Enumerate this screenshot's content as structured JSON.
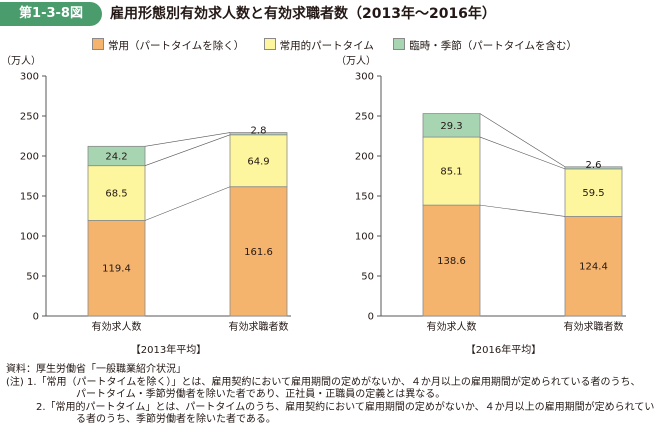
{
  "figure_label": "第1-3-8図",
  "title": "雇用形態別有効求人数と有効求職者数（2013年～2016年）",
  "legend": [
    {
      "label": "常用（パートタイムを除く）",
      "color": "#f5b46e"
    },
    {
      "label": "常用的パートタイム",
      "color": "#fdf69e"
    },
    {
      "label": "臨時・季節（パートタイムを含む）",
      "color": "#a7d5b2"
    }
  ],
  "chart_data": [
    {
      "type": "bar",
      "stacked": true,
      "ylabel": "（万人）",
      "ylim": [
        0,
        300
      ],
      "yticks": [
        0,
        50,
        100,
        150,
        200,
        250,
        300
      ],
      "categories": [
        "有効求人数",
        "有効求職者数"
      ],
      "xlabel": "【2013年平均】",
      "series": [
        {
          "name": "常用（パートタイムを除く）",
          "color": "#f5b46e",
          "values": [
            119.4,
            161.6
          ]
        },
        {
          "name": "常用的パートタイム",
          "color": "#fdf69e",
          "values": [
            68.5,
            64.9
          ]
        },
        {
          "name": "臨時・季節（パートタイムを含む）",
          "color": "#a7d5b2",
          "values": [
            24.2,
            2.8
          ]
        }
      ]
    },
    {
      "type": "bar",
      "stacked": true,
      "ylabel": "（万人）",
      "ylim": [
        0,
        300
      ],
      "yticks": [
        0,
        50,
        100,
        150,
        200,
        250,
        300
      ],
      "categories": [
        "有効求人数",
        "有効求職者数"
      ],
      "xlabel": "【2016年平均】",
      "series": [
        {
          "name": "常用（パートタイムを除く）",
          "color": "#f5b46e",
          "values": [
            138.6,
            124.4
          ]
        },
        {
          "name": "常用的パートタイム",
          "color": "#fdf69e",
          "values": [
            85.1,
            59.5
          ]
        },
        {
          "name": "臨時・季節（パートタイムを含む）",
          "color": "#a7d5b2",
          "values": [
            29.3,
            2.6
          ]
        }
      ]
    }
  ],
  "notes": [
    "資料：厚生労働省「一般職業紹介状況」",
    "(注) 1.「常用（パートタイムを除く）」とは、雇用契約において雇用期間の定めがないか、４か月以上の雇用期間が定められている者のうち、",
    "パートタイム・季節労働者を除いた者であり、正社員・正職員の定義とは異なる。",
    "2.「常用的パートタイム」とは、パートタイムのうち、雇用契約において雇用期間の定めがないか、４か月以上の雇用期間が定められてい",
    "る者のうち、季節労働者を除いた者である。"
  ]
}
